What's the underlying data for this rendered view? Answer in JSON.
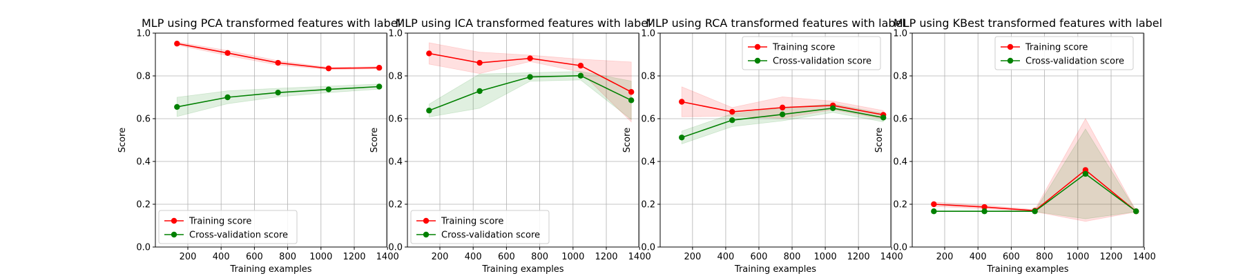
{
  "chart_data": [
    {
      "type": "line",
      "title": "MLP using PCA transformed features with label",
      "xlabel": "Training examples",
      "ylabel": "Score",
      "xlim": [
        5,
        1395
      ],
      "ylim": [
        0.0,
        1.0
      ],
      "xticks": [
        200,
        400,
        600,
        800,
        1000,
        1200,
        1400
      ],
      "yticks": [
        0.0,
        0.2,
        0.4,
        0.6,
        0.8,
        1.0
      ],
      "grid": true,
      "legend": "lower-left",
      "x": [
        135,
        439,
        742,
        1046,
        1350
      ],
      "series": [
        {
          "name": "Training score",
          "color": "#ff0000",
          "values": [
            0.951,
            0.907,
            0.861,
            0.835,
            0.838
          ],
          "band": [
            0.007,
            0.012,
            0.01,
            0.005,
            0.005
          ]
        },
        {
          "name": "Cross-validation score",
          "color": "#008000",
          "values": [
            0.655,
            0.7,
            0.722,
            0.737,
            0.75
          ],
          "band": [
            0.045,
            0.03,
            0.02,
            0.015,
            0.012
          ]
        }
      ]
    },
    {
      "type": "line",
      "title": "MLP using ICA transformed features with label",
      "xlabel": "Training examples",
      "ylabel": "Score",
      "xlim": [
        5,
        1395
      ],
      "ylim": [
        0.0,
        1.0
      ],
      "xticks": [
        200,
        400,
        600,
        800,
        1000,
        1200,
        1400
      ],
      "yticks": [
        0.0,
        0.2,
        0.4,
        0.6,
        0.8,
        1.0
      ],
      "grid": true,
      "legend": "lower-left",
      "x": [
        135,
        439,
        742,
        1046,
        1350
      ],
      "series": [
        {
          "name": "Training score",
          "color": "#ff0000",
          "values": [
            0.905,
            0.861,
            0.882,
            0.848,
            0.725
          ],
          "band": [
            0.05,
            0.05,
            0.015,
            0.03,
            0.14
          ]
        },
        {
          "name": "Cross-validation score",
          "color": "#008000",
          "values": [
            0.638,
            0.729,
            0.795,
            0.801,
            0.686
          ],
          "band": [
            0.03,
            0.08,
            0.02,
            0.02,
            0.09
          ]
        }
      ]
    },
    {
      "type": "line",
      "title": "MLP using RCA transformed features with label",
      "xlabel": "Training examples",
      "ylabel": "Score",
      "xlim": [
        5,
        1395
      ],
      "ylim": [
        0.0,
        1.0
      ],
      "xticks": [
        200,
        400,
        600,
        800,
        1000,
        1200,
        1400
      ],
      "yticks": [
        0.0,
        0.2,
        0.4,
        0.6,
        0.8,
        1.0
      ],
      "grid": true,
      "legend": "upper-right",
      "x": [
        135,
        439,
        742,
        1046,
        1350
      ],
      "series": [
        {
          "name": "Training score",
          "color": "#ff0000",
          "values": [
            0.679,
            0.632,
            0.652,
            0.662,
            0.618
          ],
          "band": [
            0.07,
            0.02,
            0.05,
            0.02,
            0.02
          ]
        },
        {
          "name": "Cross-validation score",
          "color": "#008000",
          "values": [
            0.512,
            0.593,
            0.62,
            0.649,
            0.605
          ],
          "band": [
            0.03,
            0.03,
            0.03,
            0.02,
            0.02
          ]
        }
      ]
    },
    {
      "type": "line",
      "title": "MLP using KBest transformed features with label",
      "xlabel": "Training examples",
      "ylabel": "Score",
      "xlim": [
        5,
        1395
      ],
      "ylim": [
        0.0,
        1.0
      ],
      "xticks": [
        200,
        400,
        600,
        800,
        1000,
        1200,
        1400
      ],
      "yticks": [
        0.0,
        0.2,
        0.4,
        0.6,
        0.8,
        1.0
      ],
      "grid": true,
      "legend": "upper-right",
      "x": [
        135,
        439,
        742,
        1046,
        1350
      ],
      "series": [
        {
          "name": "Training score",
          "color": "#ff0000",
          "values": [
            0.2,
            0.187,
            0.17,
            0.36,
            0.167
          ],
          "band": [
            0.01,
            0.008,
            0.005,
            0.24,
            0.003
          ]
        },
        {
          "name": "Cross-validation score",
          "color": "#008000",
          "values": [
            0.167,
            0.167,
            0.167,
            0.342,
            0.167
          ],
          "band": [
            0.002,
            0.002,
            0.002,
            0.21,
            0.002
          ]
        }
      ]
    }
  ]
}
